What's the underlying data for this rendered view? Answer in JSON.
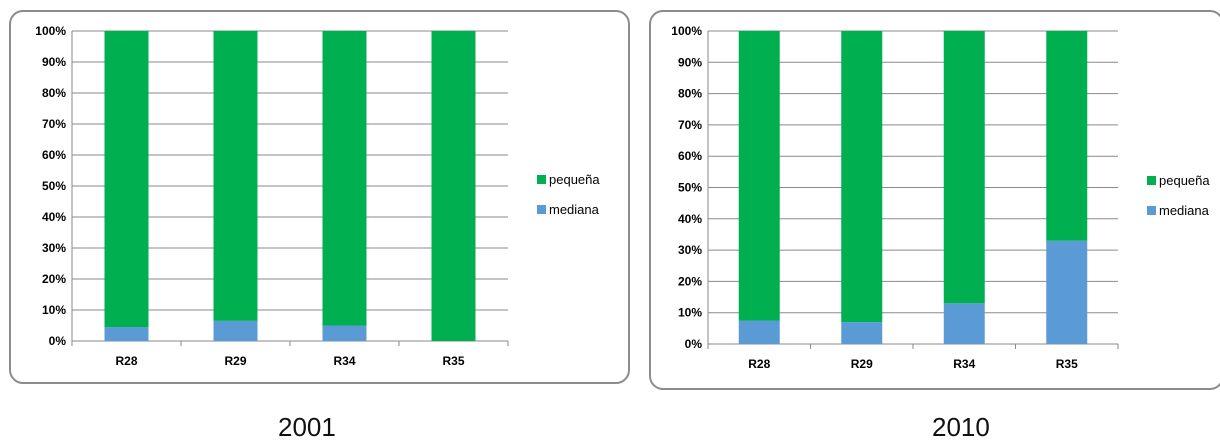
{
  "chart_data": [
    {
      "type": "bar",
      "stacked": true,
      "title": "2001",
      "categories": [
        "R28",
        "R29",
        "R34",
        "R35"
      ],
      "series": [
        {
          "name": "mediana",
          "color": "#5b9bd5",
          "values": [
            4.5,
            6.5,
            5.0,
            0.0
          ]
        },
        {
          "name": "pequeña",
          "color": "#00b050",
          "values": [
            95.5,
            93.5,
            95.0,
            100.0
          ]
        }
      ],
      "ylim": [
        0,
        100
      ],
      "yticks": [
        "0%",
        "10%",
        "20%",
        "30%",
        "40%",
        "50%",
        "60%",
        "70%",
        "80%",
        "90%",
        "100%"
      ],
      "legend_order": [
        "pequeña",
        "mediana"
      ],
      "legend_position": "right",
      "grid": true
    },
    {
      "type": "bar",
      "stacked": true,
      "title": "2010",
      "categories": [
        "R28",
        "R29",
        "R34",
        "R35"
      ],
      "series": [
        {
          "name": "mediana",
          "color": "#5b9bd5",
          "values": [
            7.5,
            7.0,
            13.0,
            33.0
          ]
        },
        {
          "name": "pequeña",
          "color": "#00b050",
          "values": [
            92.5,
            93.0,
            87.0,
            67.0
          ]
        }
      ],
      "ylim": [
        0,
        100
      ],
      "yticks": [
        "0%",
        "10%",
        "20%",
        "30%",
        "40%",
        "50%",
        "60%",
        "70%",
        "80%",
        "90%",
        "100%"
      ],
      "legend_order": [
        "pequeña",
        "mediana"
      ],
      "legend_position": "right",
      "grid": true
    }
  ]
}
